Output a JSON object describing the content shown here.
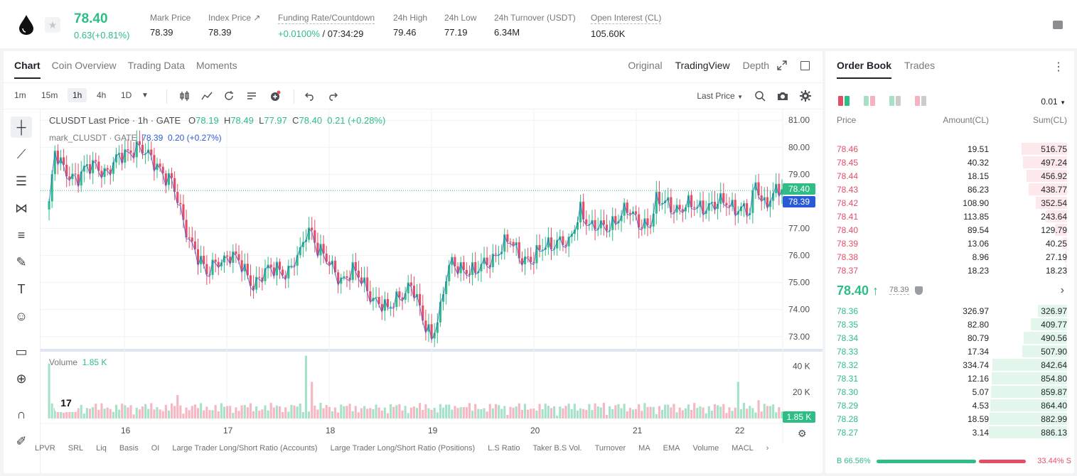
{
  "header": {
    "last_price": "78.40",
    "change": "0.63(+0.81%)",
    "stats": [
      {
        "label": "Mark Price",
        "value": "78.39"
      },
      {
        "label": "Index Price ↗",
        "value": "78.39"
      },
      {
        "label": "Funding Rate/Countdown",
        "value_green": "+0.0100%",
        "value_rest": " / 07:34:29"
      },
      {
        "label": "24h High",
        "value": "79.46"
      },
      {
        "label": "24h Low",
        "value": "77.19"
      },
      {
        "label": "24h Turnover (USDT)",
        "value": "6.34M"
      },
      {
        "label": "Open Interest (CL)",
        "value": "105.60K"
      }
    ]
  },
  "chart_tabs": [
    "Chart",
    "Coin Overview",
    "Trading Data",
    "Moments"
  ],
  "chart_views": [
    "Original",
    "TradingView",
    "Depth"
  ],
  "intervals": [
    "1m",
    "15m",
    "1h",
    "4h",
    "1D"
  ],
  "price_source": "Last Price",
  "legend": {
    "title": "CLUSDT Last Price · 1h · GATE",
    "o_label": "O",
    "o": "78.19",
    "h_label": "H",
    "h": "78.49",
    "l_label": "L",
    "l": "77.97",
    "c_label": "C",
    "c": "78.40",
    "chg": "0.21 (+0.28%)",
    "mark_name": "mark_CLUSDT · GATE",
    "mark_value": "78.39",
    "mark_chg": "0.20 (+0.27%)"
  },
  "volume_legend": {
    "label": "Volume",
    "value": "1.85 K"
  },
  "price_tags": {
    "last": "78.40",
    "mark": "78.39",
    "volume": "1.85 K"
  },
  "indicators": [
    "LPVR",
    "SRL",
    "Liq",
    "Basis",
    "OI",
    "Large Trader Long/Short Ratio (Accounts)",
    "Large Trader Long/Short Ratio (Positions)",
    "L.S Ratio",
    "Taker B.S Vol.",
    "Turnover",
    "MA",
    "EMA",
    "Volume",
    "MACL"
  ],
  "icons": [
    "drop-logo-icon",
    "star-icon",
    "candles-icon",
    "indicator-icon",
    "replay-icon",
    "list-icon",
    "add-icon",
    "undo-icon",
    "redo-icon",
    "search-icon",
    "camera-icon",
    "settings-icon"
  ],
  "colors": {
    "up": "#2ebd85",
    "down": "#e54d67",
    "mark": "#2a5bd7"
  },
  "chart_data": {
    "type": "candlestick",
    "title": "CLUSDT Last Price · 1h · GATE",
    "x_ticks": [
      "16",
      "17",
      "18",
      "19",
      "20",
      "21",
      "22"
    ],
    "y_ticks": [
      73.0,
      74.0,
      75.0,
      76.0,
      77.0,
      78.0,
      79.0,
      80.0,
      81.0
    ],
    "ylim": [
      72.6,
      81.4
    ],
    "vol_ticks": [
      "20 K",
      "40 K"
    ],
    "anchors": [
      [
        0,
        77.9
      ],
      [
        2,
        79.7
      ],
      [
        5,
        79.2
      ],
      [
        10,
        78.9
      ],
      [
        16,
        79.4
      ],
      [
        20,
        79.1
      ],
      [
        26,
        79.8
      ],
      [
        30,
        80.1
      ],
      [
        34,
        79.6
      ],
      [
        38,
        79.3
      ],
      [
        42,
        78.7
      ],
      [
        46,
        77.2
      ],
      [
        50,
        76.3
      ],
      [
        54,
        75.2
      ],
      [
        58,
        75.9
      ],
      [
        62,
        76.0
      ],
      [
        66,
        75.6
      ],
      [
        70,
        75.0
      ],
      [
        74,
        75.3
      ],
      [
        78,
        75.6
      ],
      [
        82,
        75.4
      ],
      [
        86,
        76.0
      ],
      [
        88,
        76.9
      ],
      [
        90,
        77.0
      ],
      [
        92,
        76.3
      ],
      [
        96,
        75.6
      ],
      [
        100,
        75.2
      ],
      [
        104,
        75.4
      ],
      [
        108,
        74.9
      ],
      [
        112,
        74.4
      ],
      [
        116,
        73.9
      ],
      [
        120,
        74.6
      ],
      [
        124,
        74.9
      ],
      [
        128,
        73.6
      ],
      [
        131,
        73.1
      ],
      [
        134,
        74.0
      ],
      [
        136,
        75.1
      ],
      [
        138,
        75.7
      ],
      [
        142,
        75.6
      ],
      [
        146,
        75.3
      ],
      [
        150,
        75.8
      ],
      [
        154,
        76.2
      ],
      [
        158,
        76.5
      ],
      [
        162,
        76.0
      ],
      [
        166,
        75.8
      ],
      [
        170,
        76.4
      ],
      [
        174,
        76.6
      ],
      [
        178,
        76.3
      ],
      [
        182,
        77.8
      ],
      [
        186,
        77.0
      ],
      [
        190,
        77.0
      ],
      [
        194,
        77.4
      ],
      [
        198,
        77.6
      ],
      [
        202,
        77.3
      ],
      [
        206,
        77.2
      ],
      [
        208,
        77.9
      ],
      [
        212,
        78.0
      ],
      [
        216,
        77.7
      ],
      [
        220,
        77.8
      ],
      [
        224,
        77.9
      ],
      [
        228,
        77.8
      ],
      [
        232,
        78.0
      ],
      [
        236,
        77.8
      ],
      [
        240,
        77.5
      ],
      [
        242,
        78.7
      ],
      [
        245,
        78.0
      ],
      [
        248,
        78.2
      ],
      [
        251,
        78.4
      ]
    ],
    "volume_spikes": [
      [
        0,
        42
      ],
      [
        44,
        18
      ],
      [
        88,
        48
      ],
      [
        90,
        28
      ],
      [
        110,
        8
      ],
      [
        140,
        8
      ],
      [
        190,
        12
      ],
      [
        236,
        28
      ],
      [
        243,
        14
      ]
    ]
  },
  "orderbook": {
    "tabs": [
      "Order Book",
      "Trades"
    ],
    "precision": "0.01",
    "headers": {
      "price": "Price",
      "amount": "Amount(CL)",
      "sum": "Sum(CL)"
    },
    "asks": [
      {
        "p": "78.46",
        "a": "19.51",
        "s": "516.75",
        "f": 0.58
      },
      {
        "p": "78.45",
        "a": "40.32",
        "s": "497.24",
        "f": 0.56
      },
      {
        "p": "78.44",
        "a": "18.15",
        "s": "456.92",
        "f": 0.52
      },
      {
        "p": "78.43",
        "a": "86.23",
        "s": "438.77",
        "f": 0.49
      },
      {
        "p": "78.42",
        "a": "108.90",
        "s": "352.54",
        "f": 0.4
      },
      {
        "p": "78.41",
        "a": "113.85",
        "s": "243.64",
        "f": 0.27
      },
      {
        "p": "78.40",
        "a": "89.54",
        "s": "129.79",
        "f": 0.15
      },
      {
        "p": "78.39",
        "a": "13.06",
        "s": "40.25",
        "f": 0.05
      },
      {
        "p": "78.38",
        "a": "8.96",
        "s": "27.19",
        "f": 0.03
      },
      {
        "p": "78.37",
        "a": "18.23",
        "s": "18.23",
        "f": 0.02
      }
    ],
    "mid_price": "78.40 ↑",
    "mid_mark": "78.39",
    "bids": [
      {
        "p": "78.36",
        "a": "326.97",
        "s": "326.97",
        "f": 0.37
      },
      {
        "p": "78.35",
        "a": "82.80",
        "s": "409.77",
        "f": 0.46
      },
      {
        "p": "78.34",
        "a": "80.79",
        "s": "490.56",
        "f": 0.55
      },
      {
        "p": "78.33",
        "a": "17.34",
        "s": "507.90",
        "f": 0.57
      },
      {
        "p": "78.32",
        "a": "334.74",
        "s": "842.64",
        "f": 0.95
      },
      {
        "p": "78.31",
        "a": "12.16",
        "s": "854.80",
        "f": 0.96
      },
      {
        "p": "78.30",
        "a": "5.07",
        "s": "859.87",
        "f": 0.97
      },
      {
        "p": "78.29",
        "a": "4.53",
        "s": "864.40",
        "f": 0.98
      },
      {
        "p": "78.28",
        "a": "18.59",
        "s": "882.99",
        "f": 0.99
      },
      {
        "p": "78.27",
        "a": "3.14",
        "s": "886.13",
        "f": 1.0
      }
    ],
    "buy_ratio_label": "B 66.56%",
    "sell_ratio_label": "33.44% S",
    "buy_ratio": 0.6656
  }
}
